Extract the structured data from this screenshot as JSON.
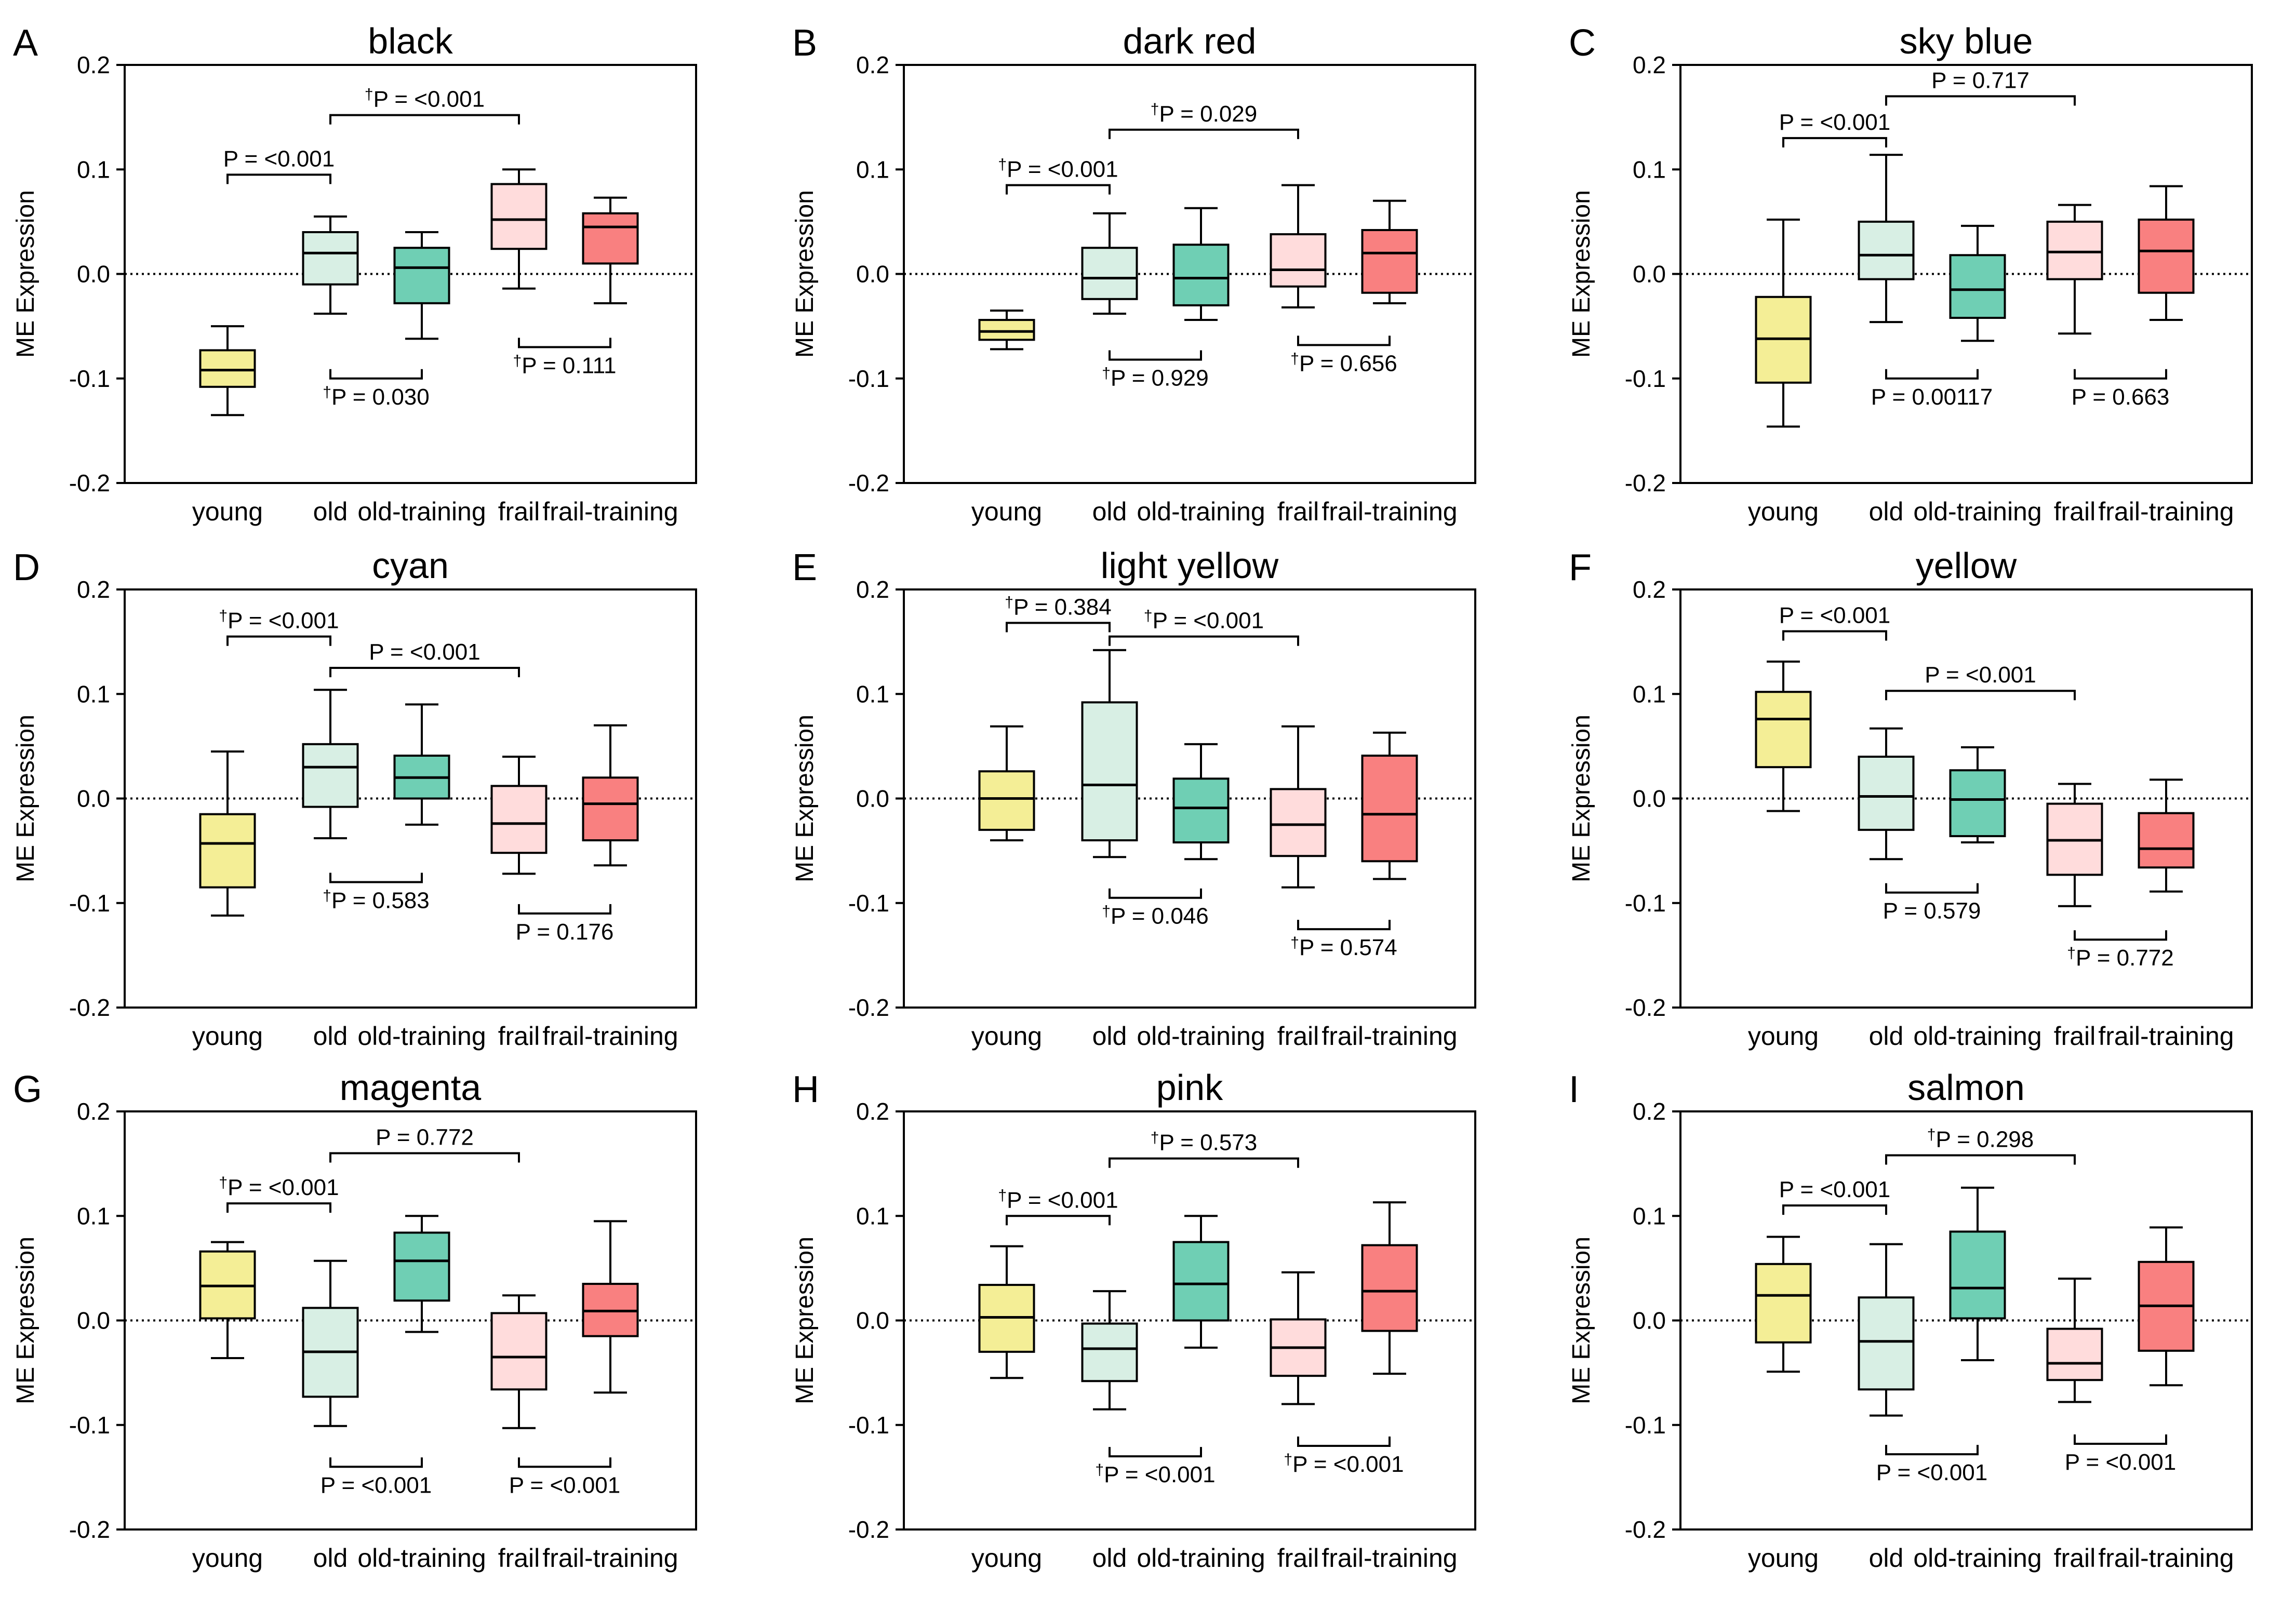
{
  "figure": {
    "box_colors": {
      "young": "#F4EE96",
      "old": "#D8EFE4",
      "old-training": "#6FCFB4",
      "frail": "#FFDCDC",
      "frail-training": "#F98080"
    }
  },
  "chart_data": [
    {
      "type": "box",
      "letter": "A",
      "title": "black",
      "ylabel": "ME Expression",
      "ylim": [
        -0.2,
        0.2
      ],
      "yticks": [
        "0.2",
        "0.1",
        "0.0",
        "-0.1",
        "-0.2"
      ],
      "categories": [
        "young",
        "old",
        "old-training",
        "frail",
        "frail-training"
      ],
      "boxes": [
        {
          "min": -0.135,
          "q1": -0.108,
          "median": -0.092,
          "q3": -0.073,
          "max": -0.05
        },
        {
          "min": -0.038,
          "q1": -0.01,
          "median": 0.02,
          "q3": 0.04,
          "max": 0.055
        },
        {
          "min": -0.062,
          "q1": -0.028,
          "median": 0.006,
          "q3": 0.025,
          "max": 0.04
        },
        {
          "min": -0.014,
          "q1": 0.024,
          "median": 0.052,
          "q3": 0.086,
          "max": 0.1
        },
        {
          "min": -0.028,
          "q1": 0.01,
          "median": 0.045,
          "q3": 0.058,
          "max": 0.073
        }
      ],
      "comparisons": [
        {
          "from": 0,
          "to": 1,
          "level": 0.095,
          "side": "above",
          "dagger": false,
          "label": "P = <0.001"
        },
        {
          "from": 1,
          "to": 3,
          "level": 0.152,
          "side": "above",
          "dagger": true,
          "label": "P = <0.001"
        },
        {
          "from": 1,
          "to": 2,
          "level": -0.1,
          "side": "below",
          "dagger": true,
          "label": "P = 0.030"
        },
        {
          "from": 3,
          "to": 4,
          "level": -0.07,
          "side": "below",
          "dagger": true,
          "label": "P = 0.111"
        }
      ]
    },
    {
      "type": "box",
      "letter": "B",
      "title": "dark red",
      "ylabel": "ME Expression",
      "ylim": [
        -0.2,
        0.2
      ],
      "yticks": [
        "0.2",
        "0.1",
        "0.0",
        "-0.1",
        "-0.2"
      ],
      "categories": [
        "young",
        "old",
        "old-training",
        "frail",
        "frail-training"
      ],
      "boxes": [
        {
          "min": -0.072,
          "q1": -0.063,
          "median": -0.055,
          "q3": -0.044,
          "max": -0.035
        },
        {
          "min": -0.038,
          "q1": -0.024,
          "median": -0.004,
          "q3": 0.025,
          "max": 0.058
        },
        {
          "min": -0.044,
          "q1": -0.03,
          "median": -0.004,
          "q3": 0.028,
          "max": 0.063
        },
        {
          "min": -0.032,
          "q1": -0.012,
          "median": 0.004,
          "q3": 0.038,
          "max": 0.085
        },
        {
          "min": -0.028,
          "q1": -0.018,
          "median": 0.02,
          "q3": 0.042,
          "max": 0.07
        }
      ],
      "comparisons": [
        {
          "from": 0,
          "to": 1,
          "level": 0.085,
          "side": "above",
          "dagger": true,
          "label": "P = <0.001"
        },
        {
          "from": 1,
          "to": 3,
          "level": 0.138,
          "side": "above",
          "dagger": true,
          "label": "P = 0.029"
        },
        {
          "from": 1,
          "to": 2,
          "level": -0.082,
          "side": "below",
          "dagger": true,
          "label": "P = 0.929"
        },
        {
          "from": 3,
          "to": 4,
          "level": -0.068,
          "side": "below",
          "dagger": true,
          "label": "P = 0.656"
        }
      ]
    },
    {
      "type": "box",
      "letter": "C",
      "title": "sky blue",
      "ylabel": "ME Expression",
      "ylim": [
        -0.2,
        0.2
      ],
      "yticks": [
        "0.2",
        "0.1",
        "0.0",
        "-0.1",
        "-0.2"
      ],
      "categories": [
        "young",
        "old",
        "old-training",
        "frail",
        "frail-training"
      ],
      "boxes": [
        {
          "min": -0.146,
          "q1": -0.104,
          "median": -0.062,
          "q3": -0.022,
          "max": 0.052
        },
        {
          "min": -0.046,
          "q1": -0.005,
          "median": 0.018,
          "q3": 0.05,
          "max": 0.114
        },
        {
          "min": -0.064,
          "q1": -0.042,
          "median": -0.015,
          "q3": 0.018,
          "max": 0.046
        },
        {
          "min": -0.057,
          "q1": -0.005,
          "median": 0.021,
          "q3": 0.05,
          "max": 0.066
        },
        {
          "min": -0.044,
          "q1": -0.018,
          "median": 0.022,
          "q3": 0.052,
          "max": 0.084
        }
      ],
      "comparisons": [
        {
          "from": 0,
          "to": 1,
          "level": 0.13,
          "side": "above",
          "dagger": false,
          "label": "P = <0.001"
        },
        {
          "from": 1,
          "to": 3,
          "level": 0.17,
          "side": "above",
          "dagger": false,
          "label": "P = 0.717"
        },
        {
          "from": 1,
          "to": 2,
          "level": -0.1,
          "side": "below",
          "dagger": false,
          "label": "P = 0.00117"
        },
        {
          "from": 3,
          "to": 4,
          "level": -0.1,
          "side": "below",
          "dagger": false,
          "label": "P = 0.663"
        }
      ]
    },
    {
      "type": "box",
      "letter": "D",
      "title": "cyan",
      "ylabel": "ME Expression",
      "ylim": [
        -0.2,
        0.2
      ],
      "yticks": [
        "0.2",
        "0.1",
        "0.0",
        "-0.1",
        "-0.2"
      ],
      "categories": [
        "young",
        "old",
        "old-training",
        "frail",
        "frail-training"
      ],
      "boxes": [
        {
          "min": -0.112,
          "q1": -0.085,
          "median": -0.043,
          "q3": -0.015,
          "max": 0.045
        },
        {
          "min": -0.038,
          "q1": -0.008,
          "median": 0.03,
          "q3": 0.052,
          "max": 0.104
        },
        {
          "min": -0.025,
          "q1": 0.0,
          "median": 0.02,
          "q3": 0.041,
          "max": 0.09
        },
        {
          "min": -0.072,
          "q1": -0.052,
          "median": -0.024,
          "q3": 0.012,
          "max": 0.04
        },
        {
          "min": -0.064,
          "q1": -0.04,
          "median": -0.005,
          "q3": 0.02,
          "max": 0.07
        }
      ],
      "comparisons": [
        {
          "from": 0,
          "to": 1,
          "level": 0.155,
          "side": "above",
          "dagger": true,
          "label": "P = <0.001"
        },
        {
          "from": 1,
          "to": 3,
          "level": 0.125,
          "side": "above",
          "dagger": false,
          "label": "P = <0.001"
        },
        {
          "from": 1,
          "to": 2,
          "level": -0.08,
          "side": "below",
          "dagger": true,
          "label": "P = 0.583"
        },
        {
          "from": 3,
          "to": 4,
          "level": -0.11,
          "side": "below",
          "dagger": false,
          "label": "P = 0.176"
        }
      ]
    },
    {
      "type": "box",
      "letter": "E",
      "title": "light yellow",
      "ylabel": "ME Expression",
      "ylim": [
        -0.2,
        0.2
      ],
      "yticks": [
        "0.2",
        "0.1",
        "0.0",
        "-0.1",
        "-0.2"
      ],
      "categories": [
        "young",
        "old",
        "old-training",
        "frail",
        "frail-training"
      ],
      "boxes": [
        {
          "min": -0.04,
          "q1": -0.03,
          "median": 0.0,
          "q3": 0.026,
          "max": 0.069
        },
        {
          "min": -0.056,
          "q1": -0.04,
          "median": 0.013,
          "q3": 0.092,
          "max": 0.142
        },
        {
          "min": -0.058,
          "q1": -0.042,
          "median": -0.009,
          "q3": 0.019,
          "max": 0.052
        },
        {
          "min": -0.085,
          "q1": -0.055,
          "median": -0.025,
          "q3": 0.009,
          "max": 0.069
        },
        {
          "min": -0.077,
          "q1": -0.06,
          "median": -0.015,
          "q3": 0.041,
          "max": 0.063
        }
      ],
      "comparisons": [
        {
          "from": 0,
          "to": 1,
          "level": 0.168,
          "side": "above",
          "dagger": true,
          "label": "P = 0.384"
        },
        {
          "from": 1,
          "to": 3,
          "level": 0.155,
          "side": "above",
          "dagger": true,
          "label": "P = <0.001"
        },
        {
          "from": 1,
          "to": 2,
          "level": -0.095,
          "side": "below",
          "dagger": true,
          "label": "P = 0.046"
        },
        {
          "from": 3,
          "to": 4,
          "level": -0.125,
          "side": "below",
          "dagger": true,
          "label": "P = 0.574"
        }
      ]
    },
    {
      "type": "box",
      "letter": "F",
      "title": "yellow",
      "ylabel": "ME Expression",
      "ylim": [
        -0.2,
        0.2
      ],
      "yticks": [
        "0.2",
        "0.1",
        "0.0",
        "-0.1",
        "-0.2"
      ],
      "categories": [
        "young",
        "old",
        "old-training",
        "frail",
        "frail-training"
      ],
      "boxes": [
        {
          "min": -0.012,
          "q1": 0.03,
          "median": 0.076,
          "q3": 0.102,
          "max": 0.131
        },
        {
          "min": -0.058,
          "q1": -0.03,
          "median": 0.002,
          "q3": 0.04,
          "max": 0.067
        },
        {
          "min": -0.042,
          "q1": -0.036,
          "median": -0.001,
          "q3": 0.027,
          "max": 0.049
        },
        {
          "min": -0.103,
          "q1": -0.073,
          "median": -0.04,
          "q3": -0.005,
          "max": 0.014
        },
        {
          "min": -0.089,
          "q1": -0.066,
          "median": -0.048,
          "q3": -0.014,
          "max": 0.018
        }
      ],
      "comparisons": [
        {
          "from": 0,
          "to": 1,
          "level": 0.16,
          "side": "above",
          "dagger": false,
          "label": "P = <0.001"
        },
        {
          "from": 1,
          "to": 3,
          "level": 0.103,
          "side": "above",
          "dagger": false,
          "label": "P = <0.001"
        },
        {
          "from": 1,
          "to": 2,
          "level": -0.09,
          "side": "below",
          "dagger": false,
          "label": "P = 0.579"
        },
        {
          "from": 3,
          "to": 4,
          "level": -0.135,
          "side": "below",
          "dagger": true,
          "label": "P = 0.772"
        }
      ]
    },
    {
      "type": "box",
      "letter": "G",
      "title": "magenta",
      "ylabel": "ME Expression",
      "ylim": [
        -0.2,
        0.2
      ],
      "yticks": [
        "0.2",
        "0.1",
        "0.0",
        "-0.1",
        "-0.2"
      ],
      "categories": [
        "young",
        "old",
        "old-training",
        "frail",
        "frail-training"
      ],
      "boxes": [
        {
          "min": -0.036,
          "q1": 0.002,
          "median": 0.033,
          "q3": 0.066,
          "max": 0.075
        },
        {
          "min": -0.101,
          "q1": -0.073,
          "median": -0.03,
          "q3": 0.012,
          "max": 0.057
        },
        {
          "min": -0.011,
          "q1": 0.019,
          "median": 0.057,
          "q3": 0.084,
          "max": 0.1
        },
        {
          "min": -0.103,
          "q1": -0.066,
          "median": -0.035,
          "q3": 0.007,
          "max": 0.024
        },
        {
          "min": -0.069,
          "q1": -0.015,
          "median": 0.009,
          "q3": 0.035,
          "max": 0.095
        }
      ],
      "comparisons": [
        {
          "from": 0,
          "to": 1,
          "level": 0.112,
          "side": "above",
          "dagger": true,
          "label": "P = <0.001"
        },
        {
          "from": 1,
          "to": 3,
          "level": 0.16,
          "side": "above",
          "dagger": false,
          "label": "P = 0.772"
        },
        {
          "from": 1,
          "to": 2,
          "level": -0.14,
          "side": "below",
          "dagger": false,
          "label": "P = <0.001"
        },
        {
          "from": 3,
          "to": 4,
          "level": -0.14,
          "side": "below",
          "dagger": false,
          "label": "P = <0.001"
        }
      ]
    },
    {
      "type": "box",
      "letter": "H",
      "title": "pink",
      "ylabel": "ME Expression",
      "ylim": [
        -0.2,
        0.2
      ],
      "yticks": [
        "0.2",
        "0.1",
        "0.0",
        "-0.1",
        "-0.2"
      ],
      "categories": [
        "young",
        "old",
        "old-training",
        "frail",
        "frail-training"
      ],
      "boxes": [
        {
          "min": -0.055,
          "q1": -0.03,
          "median": 0.003,
          "q3": 0.034,
          "max": 0.071
        },
        {
          "min": -0.085,
          "q1": -0.058,
          "median": -0.027,
          "q3": -0.003,
          "max": 0.028
        },
        {
          "min": -0.026,
          "q1": 0.0,
          "median": 0.035,
          "q3": 0.075,
          "max": 0.1
        },
        {
          "min": -0.08,
          "q1": -0.053,
          "median": -0.026,
          "q3": 0.001,
          "max": 0.046
        },
        {
          "min": -0.051,
          "q1": -0.01,
          "median": 0.028,
          "q3": 0.072,
          "max": 0.113
        }
      ],
      "comparisons": [
        {
          "from": 0,
          "to": 1,
          "level": 0.1,
          "side": "above",
          "dagger": true,
          "label": "P = <0.001"
        },
        {
          "from": 1,
          "to": 3,
          "level": 0.155,
          "side": "above",
          "dagger": true,
          "label": "P = 0.573"
        },
        {
          "from": 1,
          "to": 2,
          "level": -0.13,
          "side": "below",
          "dagger": true,
          "label": "P = <0.001"
        },
        {
          "from": 3,
          "to": 4,
          "level": -0.12,
          "side": "below",
          "dagger": true,
          "label": "P = <0.001"
        }
      ]
    },
    {
      "type": "box",
      "letter": "I",
      "title": "salmon",
      "ylabel": "ME Expression",
      "ylim": [
        -0.2,
        0.2
      ],
      "yticks": [
        "0.2",
        "0.1",
        "0.0",
        "-0.1",
        "-0.2"
      ],
      "categories": [
        "young",
        "old",
        "old-training",
        "frail",
        "frail-training"
      ],
      "boxes": [
        {
          "min": -0.049,
          "q1": -0.021,
          "median": 0.024,
          "q3": 0.054,
          "max": 0.08
        },
        {
          "min": -0.091,
          "q1": -0.066,
          "median": -0.02,
          "q3": 0.022,
          "max": 0.073
        },
        {
          "min": -0.038,
          "q1": 0.002,
          "median": 0.031,
          "q3": 0.085,
          "max": 0.127
        },
        {
          "min": -0.078,
          "q1": -0.057,
          "median": -0.041,
          "q3": -0.008,
          "max": 0.04
        },
        {
          "min": -0.062,
          "q1": -0.029,
          "median": 0.014,
          "q3": 0.056,
          "max": 0.089
        }
      ],
      "comparisons": [
        {
          "from": 0,
          "to": 1,
          "level": 0.11,
          "side": "above",
          "dagger": false,
          "label": "P = <0.001"
        },
        {
          "from": 1,
          "to": 3,
          "level": 0.158,
          "side": "above",
          "dagger": true,
          "label": "P = 0.298"
        },
        {
          "from": 1,
          "to": 2,
          "level": -0.128,
          "side": "below",
          "dagger": false,
          "label": "P = <0.001"
        },
        {
          "from": 3,
          "to": 4,
          "level": -0.118,
          "side": "below",
          "dagger": false,
          "label": "P = <0.001"
        }
      ]
    }
  ]
}
